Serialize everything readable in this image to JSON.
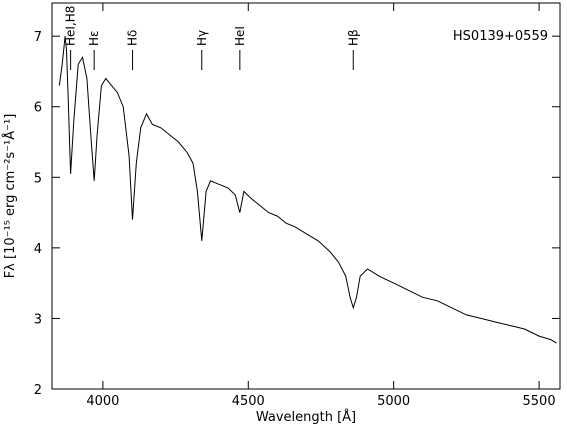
{
  "chart_data": {
    "type": "line",
    "title": "HS0139+0559",
    "x_label": "Wavelength [Å]",
    "y_label": "Fλ [10⁻¹⁵ erg cm⁻²s⁻¹Å⁻¹]",
    "xlim": [
      3825,
      5572
    ],
    "ylim": [
      2,
      7.47
    ],
    "xticks": [
      4000,
      4500,
      5000,
      5500
    ],
    "yticks": [
      2,
      3,
      4,
      5,
      6,
      7
    ],
    "color": "#000000",
    "annotations": [
      {
        "text": "HeI,H8",
        "x": 3889
      },
      {
        "text": "Hε",
        "x": 3970
      },
      {
        "text": "Hδ",
        "x": 4102
      },
      {
        "text": "Hγ",
        "x": 4340
      },
      {
        "text": "HeI",
        "x": 4471
      },
      {
        "text": "Hβ",
        "x": 4861
      }
    ],
    "x": [
      3850,
      3860,
      3870,
      3875,
      3880,
      3889,
      3900,
      3915,
      3930,
      3945,
      3960,
      3970,
      3980,
      3995,
      4010,
      4030,
      4050,
      4070,
      4090,
      4102,
      4115,
      4130,
      4150,
      4170,
      4200,
      4230,
      4260,
      4290,
      4310,
      4325,
      4340,
      4355,
      4370,
      4400,
      4430,
      4455,
      4471,
      4485,
      4510,
      4540,
      4570,
      4600,
      4630,
      4660,
      4700,
      4740,
      4780,
      4810,
      4835,
      4850,
      4861,
      4872,
      4885,
      4910,
      4950,
      5000,
      5050,
      5100,
      5150,
      5200,
      5250,
      5300,
      5350,
      5400,
      5450,
      5500,
      5540,
      5560
    ],
    "values": [
      6.3,
      6.6,
      7.0,
      6.8,
      6.2,
      5.05,
      5.8,
      6.6,
      6.7,
      6.4,
      5.5,
      4.95,
      5.6,
      6.3,
      6.4,
      6.3,
      6.2,
      6.0,
      5.3,
      4.4,
      5.2,
      5.7,
      5.9,
      5.75,
      5.7,
      5.6,
      5.5,
      5.35,
      5.2,
      4.8,
      4.1,
      4.8,
      4.95,
      4.9,
      4.85,
      4.75,
      4.5,
      4.8,
      4.7,
      4.6,
      4.5,
      4.45,
      4.35,
      4.3,
      4.2,
      4.1,
      3.95,
      3.8,
      3.6,
      3.3,
      3.15,
      3.3,
      3.6,
      3.7,
      3.6,
      3.5,
      3.4,
      3.3,
      3.25,
      3.15,
      3.05,
      3.0,
      2.95,
      2.9,
      2.85,
      2.75,
      2.7,
      2.65
    ]
  }
}
